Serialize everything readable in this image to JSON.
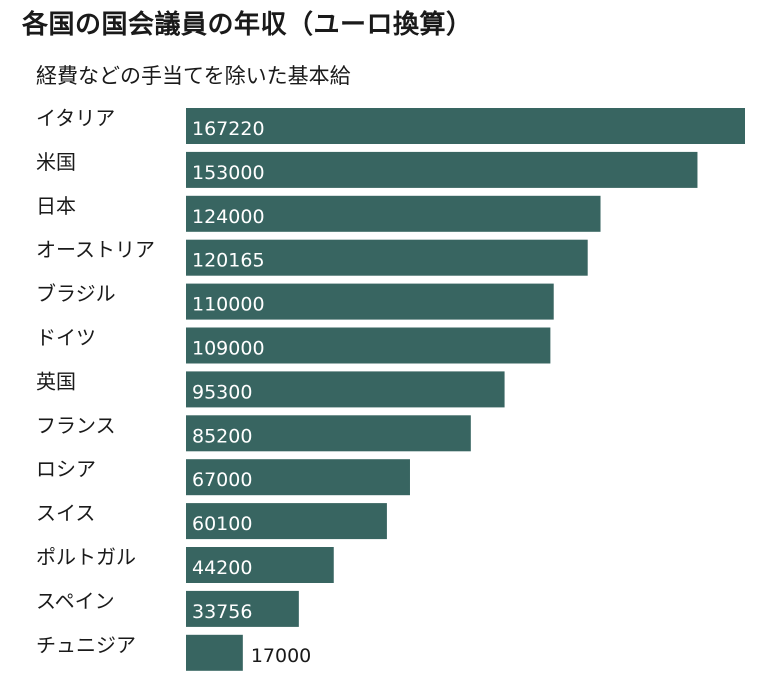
{
  "title": "各国の国会議員の年収（ユーロ換算）",
  "subtitle": "経費などの手当てを除いた基本給",
  "colors": {
    "bar": "#386561",
    "inside_label": "#ffffff",
    "outside_label": "#1a1a1a"
  },
  "chart_data": {
    "type": "bar",
    "orientation": "horizontal",
    "title": "各国の国会議員の年収（ユーロ換算）",
    "subtitle": "経費などの手当てを除いた基本給",
    "categories": [
      "イタリア",
      "米国",
      "日本",
      "オーストリア",
      "ブラジル",
      "ドイツ",
      "英国",
      "フランス",
      "ロシア",
      "スイス",
      "ポルトガル",
      "スペイン",
      "チュニジア"
    ],
    "values": [
      167220,
      153000,
      124000,
      120165,
      110000,
      109000,
      95300,
      85200,
      67000,
      60100,
      44200,
      33756,
      17000
    ],
    "data_labels": [
      "167220",
      "153000",
      "124000",
      "120165",
      "110000",
      "109000",
      "95300",
      "85200",
      "67000",
      "60100",
      "44200",
      "33756",
      "17000"
    ],
    "xlim": [
      0,
      167220
    ],
    "grid": false,
    "legend": "none"
  }
}
